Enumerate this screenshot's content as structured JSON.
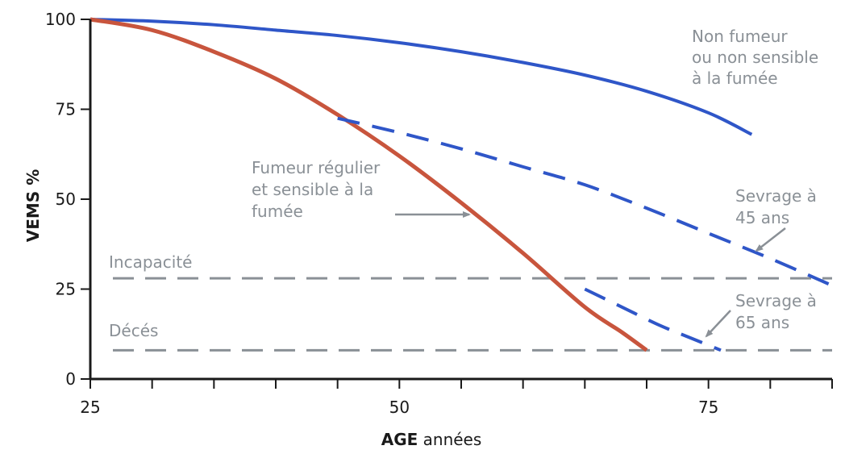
{
  "chart_data": {
    "type": "line",
    "xlabel_bold": "AGE",
    "xlabel_rest": " années",
    "ylabel": "VEMS %",
    "xlim": [
      25,
      85
    ],
    "ylim": [
      0,
      100
    ],
    "x_ticks": [
      25,
      30,
      35,
      40,
      45,
      50,
      55,
      60,
      65,
      70,
      75,
      80,
      85
    ],
    "x_tick_labels": [
      {
        "x": 25,
        "text": "25"
      },
      {
        "x": 50,
        "text": "50"
      },
      {
        "x": 75,
        "text": "75"
      }
    ],
    "y_ticks": [
      {
        "y": 0,
        "text": "0"
      },
      {
        "y": 25,
        "text": "25"
      },
      {
        "y": 50,
        "text": "50"
      },
      {
        "y": 75,
        "text": "75"
      },
      {
        "y": 100,
        "text": "100"
      }
    ],
    "series": [
      {
        "key": "non_smoker",
        "color": "#2f56c8",
        "style": "solid",
        "x": [
          25,
          30,
          35,
          40,
          45,
          50,
          55,
          60,
          65,
          70,
          75,
          78.5
        ],
        "y": [
          100,
          99.5,
          98.5,
          97,
          95.5,
          93.5,
          91,
          88,
          84.5,
          80,
          74,
          68
        ]
      },
      {
        "key": "smoker",
        "color": "#c8553d",
        "style": "solid",
        "x": [
          25,
          30,
          35,
          40,
          45,
          50,
          55,
          60,
          65,
          68,
          70
        ],
        "y": [
          100,
          97,
          91,
          83.5,
          73.5,
          62,
          49,
          35,
          20,
          13,
          8
        ]
      },
      {
        "key": "quit_45",
        "color": "#2f56c8",
        "style": "dashed",
        "x": [
          45,
          50,
          55,
          60,
          65,
          70,
          75,
          80,
          85
        ],
        "y": [
          72.5,
          68.5,
          64,
          59,
          54,
          47.5,
          40.5,
          33.5,
          26
        ]
      },
      {
        "key": "quit_65",
        "color": "#2f56c8",
        "style": "dashed",
        "x": [
          65,
          68,
          71,
          73.5,
          76
        ],
        "y": [
          25,
          20,
          15,
          11.5,
          8
        ]
      }
    ],
    "reference_lines": [
      {
        "key": "incapacity",
        "y": 28,
        "label": "Incapacité"
      },
      {
        "key": "death",
        "y": 8,
        "label": "Décés"
      }
    ],
    "annotations": {
      "non_smoker": [
        "Non fumeur",
        "ou non sensible",
        "à la fumée"
      ],
      "smoker": [
        "Fumeur régulier",
        "et sensible à la",
        "fumée"
      ],
      "quit_45": [
        "Sevrage à",
        "45 ans"
      ],
      "quit_65": [
        "Sevrage à",
        "65 ans"
      ]
    },
    "colors": {
      "axis": "#1a1a1a",
      "reference": "#8a9096",
      "arrow": "#8a9096"
    }
  }
}
